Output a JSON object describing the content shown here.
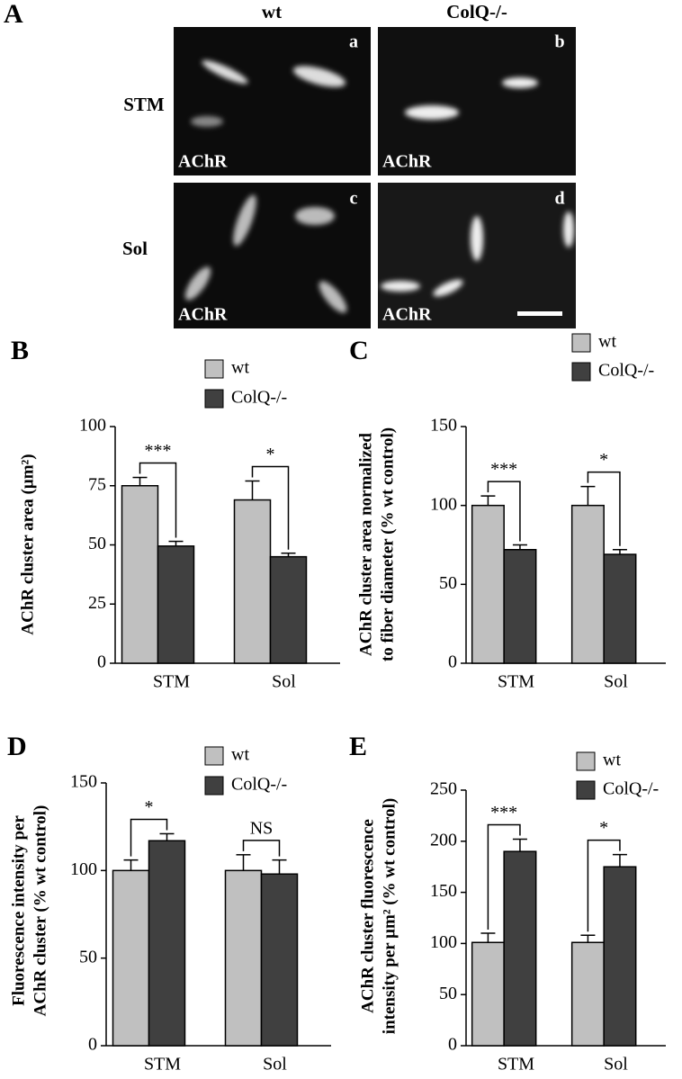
{
  "panel_a": {
    "panel_label": "A",
    "columns": [
      "wt",
      "ColQ-/-"
    ],
    "rows": [
      "STM",
      "Sol"
    ],
    "images": [
      {
        "letter": "a",
        "stain": "AChR"
      },
      {
        "letter": "b",
        "stain": "AChR"
      },
      {
        "letter": "c",
        "stain": "AChR"
      },
      {
        "letter": "d",
        "stain": "AChR"
      }
    ]
  },
  "chart_data": [
    {
      "type": "bar",
      "panel_label": "B",
      "y_label": [
        "AChR cluster area (µm²)"
      ],
      "categories": [
        "STM",
        "Sol"
      ],
      "series": [
        {
          "name": "wt",
          "color": "#c0c0c0",
          "values": [
            75,
            69
          ],
          "errors": [
            3.5,
            8
          ]
        },
        {
          "name": "ColQ-/-",
          "color": "#404040",
          "values": [
            49.5,
            45
          ],
          "errors": [
            2,
            1.5
          ]
        }
      ],
      "annotations": [
        "***",
        "*"
      ],
      "ylim": [
        0,
        100
      ],
      "yticks": [
        0,
        25,
        50,
        75,
        100
      ]
    },
    {
      "type": "bar",
      "panel_label": "C",
      "y_label": [
        "AChR cluster area normalized",
        "to fiber diameter (% wt control)"
      ],
      "categories": [
        "STM",
        "Sol"
      ],
      "series": [
        {
          "name": "wt",
          "color": "#c0c0c0",
          "values": [
            100,
            100
          ],
          "errors": [
            6,
            12
          ]
        },
        {
          "name": "ColQ-/-",
          "color": "#404040",
          "values": [
            72,
            69
          ],
          "errors": [
            3,
            3
          ]
        }
      ],
      "annotations": [
        "***",
        "*"
      ],
      "ylim": [
        0,
        150
      ],
      "yticks": [
        0,
        50,
        100,
        150
      ]
    },
    {
      "type": "bar",
      "panel_label": "D",
      "y_label": [
        "Fluorescence intensity per",
        "AChR cluster (% wt control)"
      ],
      "categories": [
        "STM",
        "Sol"
      ],
      "series": [
        {
          "name": "wt",
          "color": "#c0c0c0",
          "values": [
            100,
            100
          ],
          "errors": [
            6,
            9
          ]
        },
        {
          "name": "ColQ-/-",
          "color": "#404040",
          "values": [
            117,
            98
          ],
          "errors": [
            4,
            8
          ]
        }
      ],
      "annotations": [
        "*",
        "NS"
      ],
      "ylim": [
        0,
        150
      ],
      "yticks": [
        0,
        50,
        100,
        150
      ]
    },
    {
      "type": "bar",
      "panel_label": "E",
      "y_label": [
        "AChR cluster fluorescence",
        "intensity per µm² (% wt control)"
      ],
      "categories": [
        "STM",
        "Sol"
      ],
      "series": [
        {
          "name": "wt",
          "color": "#c0c0c0",
          "values": [
            101,
            101
          ],
          "errors": [
            9,
            7
          ]
        },
        {
          "name": "ColQ-/-",
          "color": "#404040",
          "values": [
            190,
            175
          ],
          "errors": [
            12,
            12
          ]
        }
      ],
      "annotations": [
        "***",
        "*"
      ],
      "ylim": [
        0,
        250
      ],
      "yticks": [
        0,
        50,
        100,
        150,
        200,
        250
      ]
    }
  ]
}
